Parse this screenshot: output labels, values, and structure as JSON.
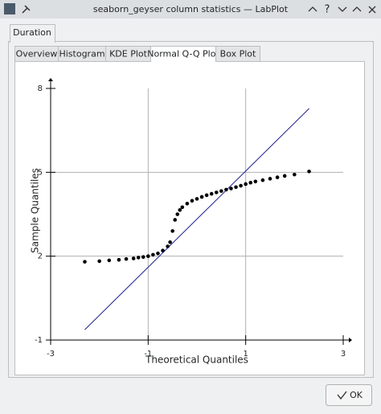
{
  "window": {
    "title": "seaborn_geyser column statistics — LabPlot",
    "help_button": "?"
  },
  "outer_tabs": [
    "Duration"
  ],
  "inner_tabs": [
    "Overview",
    "Histogram",
    "KDE Plot",
    "Normal Q-Q Plot",
    "Box Plot"
  ],
  "ok_button": "OK",
  "chart_data": {
    "type": "scatter",
    "x_label": "Theoretical Quantiles",
    "y_label": "Sample Quantiles",
    "xlim": [
      -3,
      3
    ],
    "ylim": [
      -1,
      8
    ],
    "xticks": [
      -3,
      -1,
      1,
      3
    ],
    "yticks": [
      -1,
      2,
      5,
      8
    ],
    "grid": true,
    "series": [
      {
        "color": "#000000",
        "x": [
          -2.3,
          -2.0,
          -1.8,
          -1.6,
          -1.45,
          -1.3,
          -1.2,
          -1.1,
          -1.0,
          -0.9,
          -0.8,
          -0.7,
          -0.6,
          -0.55,
          -0.5,
          -0.45,
          -0.4,
          -0.35,
          -0.3,
          -0.2,
          -0.1,
          0,
          0.1,
          0.2,
          0.3,
          0.4,
          0.5,
          0.6,
          0.7,
          0.8,
          0.9,
          1.0,
          1.1,
          1.2,
          1.35,
          1.5,
          1.65,
          1.8,
          2.0,
          2.3
        ],
        "values": [
          1.8,
          1.82,
          1.85,
          1.87,
          1.9,
          1.92,
          1.95,
          1.97,
          2.0,
          2.05,
          2.1,
          2.2,
          2.35,
          2.5,
          2.9,
          3.3,
          3.5,
          3.65,
          3.75,
          3.88,
          3.98,
          4.05,
          4.12,
          4.18,
          4.23,
          4.28,
          4.33,
          4.38,
          4.42,
          4.47,
          4.52,
          4.58,
          4.63,
          4.67,
          4.72,
          4.77,
          4.82,
          4.87,
          4.92,
          5.03
        ]
      }
    ],
    "reference_line": {
      "color": "#1a1a8c",
      "x": [
        -2.3,
        2.3
      ],
      "values": [
        -0.63,
        7.28
      ]
    }
  }
}
